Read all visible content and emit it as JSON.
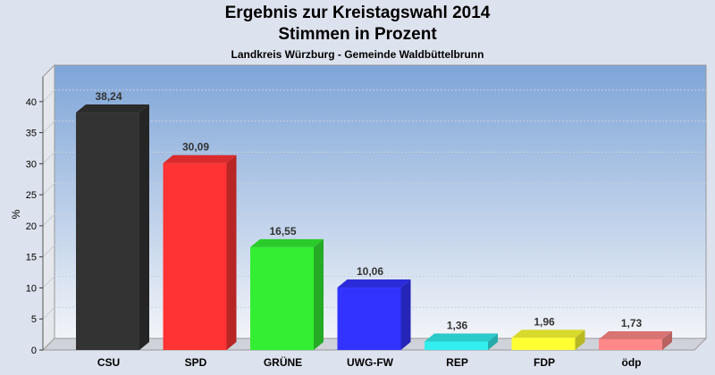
{
  "chart_data": {
    "type": "bar",
    "title": "Ergebnis zur Kreistagswahl 2014",
    "subtitle_line": "Stimmen in Prozent",
    "subtitle": "Landkreis Würzburg - Gemeinde Waldbüttelbrunn",
    "ylabel": "%",
    "xlabel": "",
    "ylim": [
      0,
      40
    ],
    "y_ticks": [
      "0",
      "5",
      "10",
      "15",
      "20",
      "25",
      "30",
      "35",
      "40"
    ],
    "categories": [
      "CSU",
      "SPD",
      "GRÜNE",
      "UWG-FW",
      "REP",
      "FDP",
      "ödp"
    ],
    "values": [
      38.24,
      30.09,
      16.55,
      10.06,
      1.36,
      1.96,
      1.73
    ],
    "value_labels": [
      "38,24",
      "30,09",
      "16,55",
      "10,06",
      "1,36",
      "1,96",
      "1,73"
    ],
    "colors": [
      "#333333",
      "#ff3333",
      "#33ee33",
      "#3333ff",
      "#33eeee",
      "#ffff33",
      "#ff8888"
    ],
    "grid": true,
    "legend": "none"
  }
}
